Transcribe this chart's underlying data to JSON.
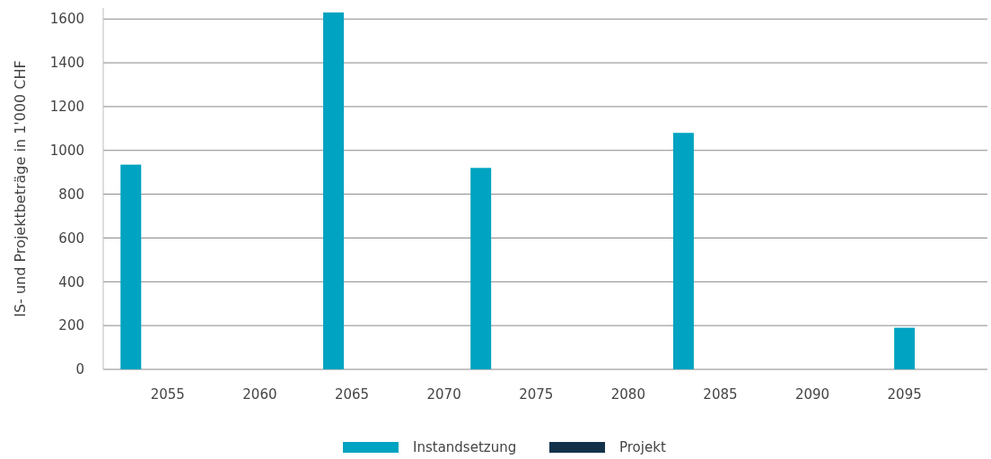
{
  "chart_data": {
    "type": "bar",
    "ylabel": "IS- und Projektbeträge in 1'000 CHF",
    "x": [
      2053,
      2064,
      2072,
      2083,
      2095
    ],
    "series": [
      {
        "name": "Instandsetzung",
        "color": "#00a3c1",
        "values": [
          935,
          1630,
          920,
          1080,
          190
        ]
      },
      {
        "name": "Projekt",
        "color": "#13324a",
        "values": [
          0,
          0,
          0,
          0,
          0
        ]
      }
    ],
    "xlim": [
      2051.5,
      2099.5
    ],
    "xticks": [
      2055,
      2060,
      2065,
      2070,
      2075,
      2080,
      2085,
      2090,
      2095
    ],
    "ylim": [
      0,
      1650
    ],
    "yticks": [
      0,
      200,
      400,
      600,
      800,
      1000,
      1200,
      1400,
      1600
    ],
    "grid": "y",
    "legend": "bottom"
  }
}
